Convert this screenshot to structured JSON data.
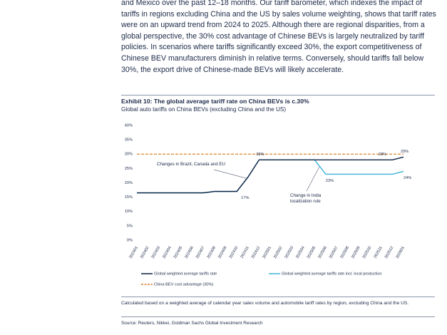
{
  "paragraph": "and Mexico over the past 12–18 months. Our tariff barometer, which indexes the impact of tariffs in regions excluding China and the US by sales volume weighting, shows that tariff rates were on an upward trend from 2024 to 2025. Although there are regional disparities, from a global perspective, the 30% cost advantage of Chinese BEVs is largely neutralized by tariff policies. In scenarios where tariffs significantly exceed 30%, the export competitiveness of Chinese BEV manufacturers diminish in relative terms. Conversely, should tariffs fall below 30%, the export drive of Chinese-made BEVs will likely accelerate.",
  "chart_data": {
    "type": "line",
    "title": "Exhibit 10: The global average tariff rate on China BEVs is c.30%",
    "subtitle": "Global auto tariffs on China BEVs (excluding China and the US)",
    "categories": [
      "202401",
      "202402",
      "202403",
      "202404",
      "202405",
      "202406",
      "202407",
      "202408",
      "202409",
      "202410",
      "202411",
      "202412",
      "202501",
      "202502",
      "202503",
      "202504",
      "202505",
      "202506",
      "202507",
      "202508",
      "202509",
      "202510",
      "202511",
      "202512",
      "202601"
    ],
    "series": [
      {
        "name": "Global weighted average tariffs rate",
        "color": "#0b1f3f",
        "values": [
          16.5,
          16.5,
          16.5,
          16.5,
          16.5,
          16.5,
          16.5,
          17,
          17,
          17,
          22,
          28,
          28,
          28,
          28,
          28,
          28,
          28,
          28,
          28,
          28,
          28,
          28,
          28,
          29
        ],
        "value_labels": [
          null,
          null,
          null,
          null,
          null,
          null,
          null,
          null,
          null,
          "17%",
          null,
          "28%",
          null,
          null,
          null,
          null,
          null,
          null,
          null,
          null,
          null,
          null,
          "28%",
          null,
          "29%"
        ]
      },
      {
        "name": "Global weighted average tariffs rate incl. local production",
        "color": "#3bb3d6",
        "values": [
          16.5,
          16.5,
          16.5,
          16.5,
          16.5,
          16.5,
          16.5,
          17,
          17,
          17,
          22,
          28,
          28,
          28,
          28,
          28,
          28,
          23,
          23,
          23,
          23,
          23,
          23,
          23,
          24
        ],
        "value_labels": [
          null,
          null,
          null,
          null,
          null,
          null,
          null,
          null,
          null,
          null,
          null,
          null,
          null,
          null,
          null,
          null,
          null,
          "23%",
          null,
          null,
          null,
          null,
          null,
          null,
          "24%"
        ]
      },
      {
        "name": "China BEV cost advantage (30%)",
        "color": "#d9822b",
        "dashed": true,
        "values": [
          30,
          30,
          30,
          30,
          30,
          30,
          30,
          30,
          30,
          30,
          30,
          30,
          30,
          30,
          30,
          30,
          30,
          30,
          30,
          30,
          30,
          30,
          30,
          30,
          30
        ]
      }
    ],
    "annotations": [
      "Changes in Brazil, Canada and EU",
      "Change in India localization rule"
    ],
    "ylim": [
      0,
      40
    ],
    "yticks": [
      {
        "value": 0,
        "label": "0%"
      },
      {
        "value": 5,
        "label": "5%"
      },
      {
        "value": 10,
        "label": "10%"
      },
      {
        "value": 15,
        "label": "15%"
      },
      {
        "value": 20,
        "label": "20%"
      },
      {
        "value": 25,
        "label": "25%"
      },
      {
        "value": 30,
        "label": "30%"
      },
      {
        "value": 35,
        "label": "35%"
      },
      {
        "value": 40,
        "label": "40%"
      }
    ],
    "grid": false,
    "legend": "bottom"
  },
  "footnote": "Calculated based on a weighted average of calendar year sales volume and automobile tariff rates by region, excluding China and the US.",
  "source": "Source: Reuters, Nikkei, Goldman Sachs Global Investment Research"
}
